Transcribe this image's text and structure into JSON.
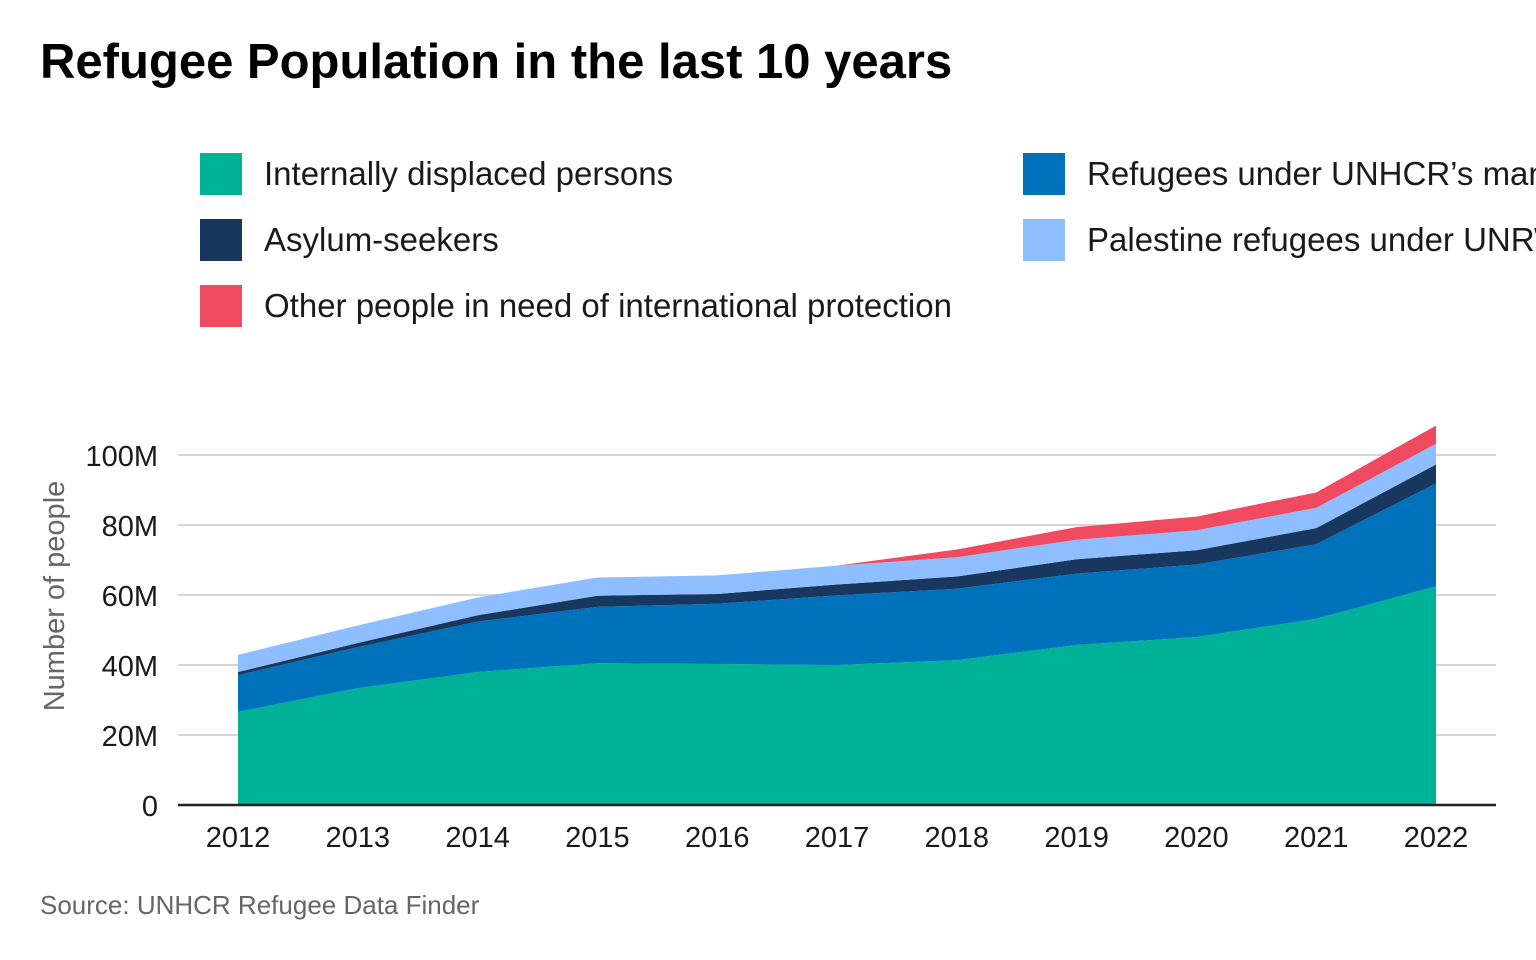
{
  "title": "Refugee Population in the last 10 years",
  "source": "Source: UNHCR Refugee Data Finder",
  "chart_data": {
    "type": "area",
    "stacked": true,
    "title": "Refugee Population in the last 10 years",
    "xlabel": "",
    "ylabel": "Number of people",
    "x": [
      "2012",
      "2013",
      "2014",
      "2015",
      "2016",
      "2017",
      "2018",
      "2019",
      "2020",
      "2021",
      "2022"
    ],
    "ylim": [
      0,
      108000000
    ],
    "yticks": [
      0,
      20000000,
      40000000,
      60000000,
      80000000,
      100000000
    ],
    "ytick_labels": [
      "0",
      "20M",
      "40M",
      "60M",
      "80M",
      "100M"
    ],
    "grid": true,
    "legend_position": "top",
    "series": [
      {
        "name": "Internally displaced persons",
        "color": "#00B398",
        "values": [
          26600000,
          33400000,
          38000000,
          40500000,
          40300000,
          40000000,
          41400000,
          45700000,
          48000000,
          53200000,
          62500000
        ]
      },
      {
        "name": "Refugees under UNHCR’s mandate",
        "color": "#0072BC",
        "values": [
          10500000,
          11700000,
          14400000,
          16100000,
          17200000,
          19900000,
          20400000,
          20400000,
          20700000,
          21300000,
          29400000
        ]
      },
      {
        "name": "Asylum-seekers",
        "color": "#18375F",
        "values": [
          900000,
          1200000,
          1800000,
          3200000,
          2800000,
          3100000,
          3500000,
          4100000,
          4100000,
          4600000,
          5400000
        ]
      },
      {
        "name": "Palestine refugees under UNRWA’s mandate",
        "color": "#8EBEFF",
        "values": [
          4900000,
          5000000,
          5100000,
          5200000,
          5300000,
          5400000,
          5500000,
          5600000,
          5700000,
          5800000,
          5900000
        ]
      },
      {
        "name": "Other people in need of international protection",
        "color": "#EF4A60",
        "values": [
          0,
          0,
          0,
          0,
          0,
          0,
          2200000,
          3600000,
          3900000,
          4400000,
          5200000
        ]
      }
    ]
  }
}
